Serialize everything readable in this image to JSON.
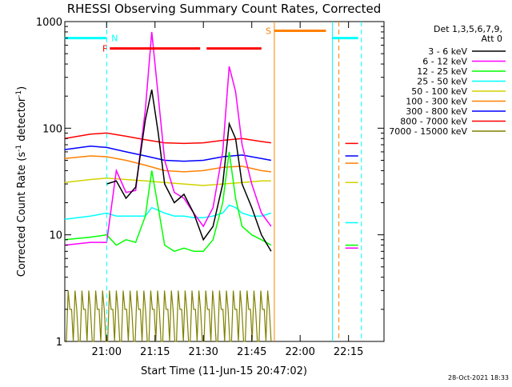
{
  "chart_data": {
    "type": "line",
    "title": "RHESSI Observing Summary Count Rates, Corrected",
    "xlabel": "Start Time (11-Jun-15 20:47:02)",
    "ylabel": "Corrected Count Rate (s^-1 detector^-1)",
    "ylabel_main": "Corrected Count Rate (s",
    "ylabel_sup1": "-1",
    "ylabel_mid": " detector",
    "ylabel_sup2": "-1",
    "ylabel_end": ")",
    "y_scale": "log",
    "ylim": [
      1,
      1000
    ],
    "xlim": [
      "20:47:02",
      "22:26:00"
    ],
    "x_ticks": [
      "21:00",
      "21:15",
      "21:30",
      "21:45",
      "22:00",
      "22:15"
    ],
    "y_ticks": [
      1,
      10,
      100,
      1000
    ],
    "y_tick_labels": [
      "1",
      "10",
      "100",
      "1000"
    ],
    "grid": false,
    "legend": {
      "placement": "outside-right",
      "header": [
        "Det 1,3,5,6,7,9,",
        "Att 0"
      ]
    },
    "series": [
      {
        "name": "3 - 6 keV",
        "color": "#000000",
        "x": [
          "21:00",
          "21:03",
          "21:06",
          "21:09",
          "21:12",
          "21:14",
          "21:16",
          "21:18",
          "21:21",
          "21:24",
          "21:27",
          "21:30",
          "21:33",
          "21:36",
          "21:38",
          "21:40",
          "21:42",
          "21:45",
          "21:48",
          "21:51"
        ],
        "y": [
          30,
          32,
          22,
          28,
          120,
          230,
          90,
          30,
          20,
          24,
          16,
          9,
          12,
          30,
          110,
          80,
          30,
          18,
          10,
          7
        ]
      },
      {
        "name": "6 - 12 keV",
        "color": "#ff00ff",
        "x": [
          "20:47",
          "20:55",
          "21:00",
          "21:03",
          "21:06",
          "21:09",
          "21:12",
          "21:14",
          "21:16",
          "21:18",
          "21:21",
          "21:24",
          "21:27",
          "21:30",
          "21:33",
          "21:36",
          "21:38",
          "21:40",
          "21:42",
          "21:45",
          "21:48",
          "21:51"
        ],
        "y": [
          8,
          8.5,
          8.5,
          40,
          25,
          26,
          150,
          800,
          200,
          50,
          25,
          22,
          16,
          12,
          18,
          60,
          380,
          220,
          70,
          30,
          16,
          12
        ]
      },
      {
        "name": "12 - 25 keV",
        "color": "#00ff00",
        "x": [
          "20:47",
          "20:55",
          "21:00",
          "21:03",
          "21:06",
          "21:09",
          "21:12",
          "21:14",
          "21:16",
          "21:18",
          "21:21",
          "21:24",
          "21:27",
          "21:30",
          "21:33",
          "21:36",
          "21:38",
          "21:40",
          "21:42",
          "21:45",
          "21:48",
          "21:51"
        ],
        "y": [
          9,
          9.5,
          10,
          8,
          9,
          8.5,
          15,
          40,
          18,
          8,
          7,
          7.5,
          7,
          7,
          9,
          20,
          60,
          22,
          12,
          10,
          9,
          8
        ]
      },
      {
        "name": "25 - 50 keV",
        "color": "#00ffff",
        "x": [
          "20:47",
          "20:55",
          "21:00",
          "21:03",
          "21:06",
          "21:09",
          "21:12",
          "21:14",
          "21:16",
          "21:18",
          "21:21",
          "21:24",
          "21:27",
          "21:30",
          "21:33",
          "21:36",
          "21:38",
          "21:40",
          "21:42",
          "21:45",
          "21:48",
          "21:51"
        ],
        "y": [
          14,
          15,
          16,
          15,
          15,
          15,
          15,
          18,
          17,
          16,
          15,
          15,
          14.5,
          14.5,
          15,
          16,
          19,
          18,
          16,
          15,
          15,
          16
        ]
      },
      {
        "name": "50 - 100 keV",
        "color": "#d2d200",
        "x": [
          "20:47",
          "20:55",
          "21:00",
          "21:06",
          "21:12",
          "21:18",
          "21:24",
          "21:30",
          "21:36",
          "21:42",
          "21:48",
          "21:51"
        ],
        "y": [
          31,
          33,
          34,
          33,
          32,
          31,
          30,
          29,
          30,
          31,
          32,
          32
        ]
      },
      {
        "name": "100 - 300 keV",
        "color": "#ff8000",
        "x": [
          "20:47",
          "20:55",
          "21:00",
          "21:06",
          "21:12",
          "21:18",
          "21:24",
          "21:30",
          "21:36",
          "21:42",
          "21:48",
          "21:51"
        ],
        "y": [
          52,
          55,
          54,
          50,
          45,
          40,
          39,
          40,
          43,
          44,
          40,
          39
        ]
      },
      {
        "name": "300 - 800 keV",
        "color": "#0000ff",
        "x": [
          "20:47",
          "20:55",
          "21:00",
          "21:06",
          "21:12",
          "21:18",
          "21:24",
          "21:30",
          "21:36",
          "21:42",
          "21:48",
          "21:51"
        ],
        "y": [
          63,
          68,
          66,
          60,
          55,
          50,
          49,
          50,
          54,
          56,
          52,
          50
        ]
      },
      {
        "name": "800 - 7000 keV",
        "color": "#ff0000",
        "x": [
          "20:47",
          "20:55",
          "21:00",
          "21:06",
          "21:12",
          "21:18",
          "21:24",
          "21:30",
          "21:36",
          "21:42",
          "21:48",
          "21:51"
        ],
        "y": [
          80,
          88,
          90,
          84,
          78,
          73,
          72,
          73,
          77,
          80,
          75,
          73
        ]
      },
      {
        "name": "7000 - 15000 keV",
        "color": "#808000",
        "x": [
          "20:47",
          "21:51"
        ],
        "y": [
          1,
          3
        ]
      }
    ],
    "post_gap_series": [
      {
        "name": "800 - 7000 keV",
        "color": "#ff0000",
        "x": [
          "22:14",
          "22:18"
        ],
        "y": [
          72,
          72
        ]
      },
      {
        "name": "300 - 800 keV",
        "color": "#0000ff",
        "x": [
          "22:14",
          "22:18"
        ],
        "y": [
          55,
          55
        ]
      },
      {
        "name": "100 - 300 keV",
        "color": "#ff8000",
        "x": [
          "22:14",
          "22:18"
        ],
        "y": [
          47,
          47
        ]
      },
      {
        "name": "50 - 100 keV",
        "color": "#d2d200",
        "x": [
          "22:14",
          "22:18"
        ],
        "y": [
          31,
          31
        ]
      },
      {
        "name": "25 - 50 keV",
        "color": "#00ffff",
        "x": [
          "22:14",
          "22:18"
        ],
        "y": [
          13,
          13
        ]
      },
      {
        "name": "12 - 25 keV",
        "color": "#00ff00",
        "x": [
          "22:14",
          "22:18"
        ],
        "y": [
          8,
          8
        ]
      },
      {
        "name": "6 - 12 keV",
        "color": "#ff00ff",
        "x": [
          "22:14",
          "22:18"
        ],
        "y": [
          7.5,
          7.5
        ]
      }
    ],
    "flags": [
      {
        "label": "N",
        "color": "#00ffff",
        "level": 700,
        "segments": [
          [
            "20:47",
            "21:00"
          ],
          [
            "22:10",
            "22:18"
          ]
        ]
      },
      {
        "label": "F",
        "color": "#ff0000",
        "level": 560,
        "segments": [
          [
            "21:01",
            "21:29"
          ],
          [
            "21:31",
            "21:48"
          ]
        ]
      },
      {
        "label": "S",
        "color": "#ff8000",
        "level": 820,
        "segments": [
          [
            "21:52",
            "22:08"
          ]
        ]
      }
    ],
    "vertical_markers": [
      {
        "color": "#00ffff",
        "style": "dashed",
        "x": "21:00"
      },
      {
        "color": "#00ffff",
        "style": "solid",
        "x": "22:10"
      },
      {
        "color": "#00ffff",
        "style": "dashed",
        "x": "22:19"
      },
      {
        "color": "#ff8000",
        "style": "solid",
        "x": "21:52"
      },
      {
        "color": "#ff8000",
        "style": "dashed",
        "x": "22:12"
      }
    ],
    "footer": "28-Oct-2021 18:33"
  }
}
